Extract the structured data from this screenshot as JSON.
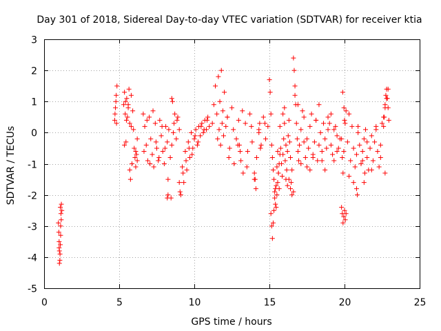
{
  "chart_data": {
    "type": "scatter",
    "title": "Day 301 of 2018, Sidereal Day-to-day VTEC variation (SDTVAR) for receiver ktia",
    "xlabel": "GPS time / hours",
    "ylabel": "SDTVAR / TECUs",
    "xlim": [
      0,
      25
    ],
    "ylim": [
      -5,
      3
    ],
    "xticks": [
      0,
      5,
      10,
      15,
      20,
      25
    ],
    "yticks": [
      -5,
      -4,
      -3,
      -2,
      -1,
      0,
      1,
      2,
      3
    ],
    "grid": true,
    "marker": "plus",
    "color": "#ff0000",
    "series": [
      {
        "name": "SDTVAR",
        "x": [
          0.95,
          0.98,
          1.0,
          1.02,
          1.05,
          1.08,
          1.1,
          1.12,
          1.15,
          1.18,
          1.02,
          1.06,
          1.1,
          1.14,
          1.0,
          1.08,
          4.7,
          4.75,
          4.8,
          4.85,
          4.72,
          4.78,
          4.82,
          5.3,
          5.35,
          5.4,
          5.45,
          5.5,
          5.55,
          5.6,
          5.65,
          5.7,
          5.75,
          5.8,
          5.85,
          5.9,
          5.95,
          6.0,
          6.05,
          6.1,
          6.15,
          6.2,
          5.35,
          5.42,
          5.48,
          5.6,
          5.7,
          5.8,
          6.1,
          6.2,
          6.6,
          6.7,
          6.8,
          6.9,
          7.0,
          7.1,
          7.2,
          7.3,
          7.4,
          7.5,
          7.6,
          7.7,
          7.8,
          7.9,
          8.0,
          8.1,
          8.2,
          8.3,
          8.4,
          8.5,
          8.6,
          8.7,
          8.8,
          8.9,
          9.0,
          6.65,
          6.85,
          7.05,
          7.25,
          7.45,
          7.65,
          7.85,
          8.05,
          8.25,
          8.45,
          8.65,
          8.85,
          8.2,
          8.25,
          8.5,
          8.55,
          9.0,
          9.1,
          9.2,
          9.3,
          9.4,
          9.5,
          9.6,
          9.7,
          9.8,
          9.9,
          10.0,
          10.1,
          10.2,
          10.3,
          10.4,
          10.5,
          10.6,
          10.7,
          10.8,
          10.9,
          11.0,
          9.05,
          9.25,
          9.45,
          9.65,
          9.85,
          10.05,
          10.25,
          10.45,
          10.65,
          10.85,
          11.2,
          11.3,
          11.4,
          11.5,
          11.6,
          11.7,
          11.8,
          11.9,
          12.0,
          12.1,
          12.2,
          11.55,
          11.65,
          11.75,
          11.85,
          11.95,
          12.2,
          12.35,
          12.5,
          12.65,
          12.8,
          12.95,
          13.1,
          13.25,
          13.4,
          13.55,
          13.7,
          13.85,
          14.0,
          14.15,
          14.3,
          14.45,
          14.6,
          14.75,
          14.9,
          12.3,
          12.6,
          12.9,
          13.2,
          13.5,
          13.8,
          14.1,
          14.4,
          14.7,
          13.0,
          13.05,
          14.0,
          14.05,
          14.3,
          14.35,
          15.0,
          15.05,
          15.1,
          15.15,
          15.2,
          15.25,
          15.3,
          15.35,
          15.4,
          15.45,
          15.5,
          15.55,
          15.6,
          15.65,
          15.7,
          15.75,
          15.8,
          15.85,
          15.9,
          15.95,
          16.0,
          16.05,
          16.1,
          16.15,
          16.2,
          16.25,
          16.3,
          16.35,
          16.4,
          16.45,
          16.5,
          15.1,
          15.15,
          15.2,
          15.25,
          15.3,
          15.35,
          15.4,
          15.45,
          15.5,
          15.55,
          15.6,
          15.65,
          15.7,
          15.9,
          16.0,
          16.1,
          16.2,
          16.3,
          16.4,
          16.5,
          16.6,
          16.6,
          16.65,
          16.7,
          16.75,
          16.8,
          16.85,
          16.9,
          16.95,
          17.0,
          17.1,
          17.2,
          17.3,
          17.4,
          17.5,
          17.6,
          17.7,
          17.8,
          17.9,
          18.0,
          18.1,
          18.2,
          18.3,
          18.4,
          18.5,
          18.6,
          18.7,
          18.8,
          18.9,
          19.0,
          19.1,
          19.2,
          19.3,
          19.4,
          19.5,
          19.6,
          19.7,
          16.7,
          16.9,
          17.1,
          17.3,
          17.5,
          17.7,
          17.9,
          18.1,
          18.3,
          18.5,
          18.7,
          18.9,
          19.1,
          19.3,
          19.5,
          19.8,
          19.85,
          19.9,
          19.95,
          20.0,
          20.05,
          20.1,
          19.88,
          19.96,
          20.04,
          19.8,
          19.85,
          19.9,
          19.95,
          20.0,
          20.1,
          20.2,
          20.3,
          20.4,
          20.5,
          20.6,
          20.7,
          20.8,
          20.9,
          21.0,
          21.1,
          21.2,
          21.3,
          21.4,
          21.5,
          21.6,
          21.7,
          21.8,
          21.9,
          22.0,
          22.1,
          22.2,
          22.3,
          22.4,
          22.5,
          22.6,
          22.7,
          22.8,
          22.9,
          20.3,
          20.6,
          20.9,
          21.2,
          21.5,
          21.8,
          22.1,
          22.4,
          22.7,
          22.6,
          22.65,
          22.7,
          22.75,
          22.8,
          22.85,
          22.9,
          22.95,
          20.8,
          20.85,
          21.3,
          21.35
        ],
        "y": [
          -2.9,
          -3.2,
          -3.5,
          -3.8,
          -4.1,
          -3.6,
          -3.0,
          -2.6,
          -2.3,
          -2.5,
          -4.2,
          -3.9,
          -3.3,
          -2.8,
          -3.7,
          -2.4,
          0.4,
          0.8,
          1.2,
          1.5,
          0.6,
          1.0,
          0.3,
          0.9,
          1.3,
          0.6,
          -0.3,
          1.1,
          0.5,
          0.8,
          1.4,
          -1.2,
          -1.5,
          0.2,
          -1.0,
          0.7,
          0.1,
          -0.5,
          -0.8,
          -1.1,
          -0.7,
          -0.9,
          -0.4,
          1.0,
          0.4,
          0.9,
          0.3,
          1.2,
          -0.6,
          -0.2,
          0.6,
          0.2,
          -0.4,
          -0.9,
          0.5,
          -0.2,
          -0.7,
          -1.1,
          0.3,
          -0.5,
          -0.9,
          0.4,
          -0.1,
          -0.6,
          -1.0,
          0.2,
          -0.3,
          0.1,
          -0.8,
          -0.4,
          0.0,
          0.6,
          -0.2,
          0.5,
          0.1,
          -0.6,
          0.4,
          -1.0,
          0.7,
          -0.3,
          -0.8,
          0.2,
          -0.5,
          -1.5,
          -2.1,
          0.3,
          0.4,
          -2.1,
          -2.0,
          1.1,
          1.0,
          -1.6,
          -2.0,
          -1.1,
          -1.6,
          -0.6,
          -1.2,
          -0.3,
          -0.8,
          0.0,
          -0.5,
          -0.2,
          0.1,
          -0.4,
          0.2,
          -0.1,
          0.3,
          0.0,
          0.4,
          0.1,
          0.5,
          0.2,
          -1.9,
          -1.3,
          -0.9,
          -0.5,
          -0.7,
          -0.1,
          -0.3,
          0.2,
          0.1,
          0.4,
          0.3,
          0.9,
          1.5,
          0.6,
          1.8,
          1.0,
          2.0,
          0.7,
          1.3,
          0.2,
          0.5,
          -0.2,
          0.1,
          -0.4,
          0.3,
          -0.1,
          0.5,
          -0.5,
          0.8,
          -1.0,
          -0.2,
          0.4,
          -0.9,
          -1.3,
          0.3,
          -0.6,
          0.6,
          -0.3,
          -1.5,
          -0.8,
          0.1,
          -0.4,
          0.5,
          -0.2,
          0.2,
          -0.8,
          0.1,
          -0.4,
          0.7,
          -1.1,
          0.2,
          -1.8,
          -0.5,
          0.3,
          -0.4,
          -0.6,
          -1.3,
          -1.5,
          0.0,
          0.3,
          1.7,
          1.3,
          0.6,
          -0.4,
          -0.8,
          -1.2,
          -1.5,
          -1.9,
          -2.3,
          -1.7,
          -1.1,
          -0.6,
          -1.3,
          -1.8,
          0.2,
          -0.5,
          -1.0,
          -1.4,
          -0.7,
          -0.2,
          0.3,
          -0.9,
          -1.5,
          -1.2,
          -0.6,
          -0.1,
          0.4,
          -0.3,
          -0.8,
          -1.6,
          -2.0,
          -2.6,
          -3.0,
          -3.4,
          -2.9,
          -2.5,
          -2.1,
          -1.8,
          -2.4,
          -2.0,
          -1.6,
          -1.3,
          -1.0,
          -0.7,
          0.6,
          0.8,
          -0.4,
          -1.7,
          -1.5,
          -1.8,
          -1.2,
          -1.9,
          2.4,
          2.0,
          1.5,
          0.9,
          0.3,
          -0.2,
          -0.6,
          -0.9,
          -0.4,
          0.1,
          0.7,
          -0.3,
          -0.8,
          -1.1,
          -0.5,
          0.2,
          0.6,
          -0.7,
          -0.3,
          0.4,
          -0.9,
          -0.4,
          0.0,
          -0.6,
          0.3,
          -0.2,
          -0.5,
          0.1,
          0.3,
          -0.4,
          -0.7,
          -0.9,
          0.2,
          -0.1,
          -0.5,
          -0.2,
          1.2,
          0.9,
          -1.0,
          0.5,
          -0.2,
          -1.2,
          -0.8,
          0.4,
          0.9,
          -0.9,
          -1.2,
          0.5,
          0.6,
          0.1,
          -0.6,
          -2.4,
          -2.6,
          -2.9,
          -2.7,
          -2.5,
          -2.8,
          -2.6,
          1.3,
          0.8,
          0.3,
          -0.2,
          -0.8,
          -1.3,
          -0.6,
          0.4,
          0.7,
          -0.3,
          -1.4,
          -0.9,
          0.2,
          -0.5,
          -1.1,
          -0.7,
          0.0,
          -0.4,
          -1.0,
          -0.6,
          -0.2,
          0.1,
          -0.8,
          -1.2,
          -0.5,
          -0.1,
          -0.9,
          -0.3,
          0.2,
          -0.6,
          -1.1,
          -0.4,
          0.3,
          0.5,
          0.8,
          1.1,
          1.4,
          0.6,
          -1.6,
          0.2,
          -0.9,
          -0.3,
          -1.2,
          0.1,
          -0.8,
          -1.3,
          0.2,
          0.5,
          0.9,
          1.2,
          1.4,
          1.1,
          0.8,
          0.4,
          -1.8,
          -2.0,
          -1.6,
          -1.3
        ]
      }
    ]
  }
}
